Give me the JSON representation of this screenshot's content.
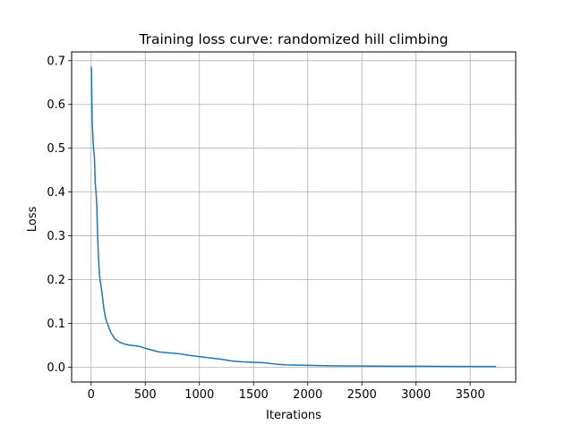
{
  "chart_data": {
    "type": "line",
    "title": "Training loss curve: randomized hill climbing",
    "xlabel": "Iterations",
    "ylabel": "Loss",
    "xlim": [
      -180,
      3920
    ],
    "ylim": [
      -0.034,
      0.72
    ],
    "xticks": [
      0,
      500,
      1000,
      1500,
      2000,
      2500,
      3000,
      3500
    ],
    "xtick_labels": [
      "0",
      "500",
      "1000",
      "1500",
      "2000",
      "2500",
      "3000",
      "3500"
    ],
    "yticks": [
      0.0,
      0.1,
      0.2,
      0.3,
      0.4,
      0.5,
      0.6,
      0.7
    ],
    "ytick_labels": [
      "0.0",
      "0.1",
      "0.2",
      "0.3",
      "0.4",
      "0.5",
      "0.6",
      "0.7"
    ],
    "grid": true,
    "legend": "none",
    "series": [
      {
        "color": "#1f77b4",
        "x": [
          0,
          3,
          5,
          8,
          10,
          14,
          18,
          22,
          27,
          32,
          38,
          45,
          52,
          60,
          68,
          75,
          82,
          90,
          100,
          110,
          120,
          135,
          150,
          165,
          180,
          200,
          220,
          250,
          280,
          320,
          360,
          400,
          450,
          500,
          560,
          620,
          700,
          800,
          900,
          1000,
          1100,
          1200,
          1300,
          1400,
          1500,
          1600,
          1700,
          1800,
          2000,
          2200,
          2500,
          2800,
          3000,
          3200,
          3500,
          3740
        ],
        "y": [
          0.686,
          0.68,
          0.64,
          0.6,
          0.56,
          0.54,
          0.515,
          0.5,
          0.49,
          0.47,
          0.42,
          0.4,
          0.37,
          0.3,
          0.25,
          0.22,
          0.2,
          0.188,
          0.17,
          0.15,
          0.13,
          0.11,
          0.1,
          0.09,
          0.08,
          0.072,
          0.064,
          0.059,
          0.055,
          0.052,
          0.05,
          0.049,
          0.047,
          0.043,
          0.039,
          0.035,
          0.033,
          0.031,
          0.027,
          0.024,
          0.021,
          0.018,
          0.014,
          0.012,
          0.011,
          0.01,
          0.007,
          0.005,
          0.004,
          0.003,
          0.0025,
          0.002,
          0.002,
          0.0017,
          0.0015,
          0.0012
        ]
      }
    ]
  }
}
